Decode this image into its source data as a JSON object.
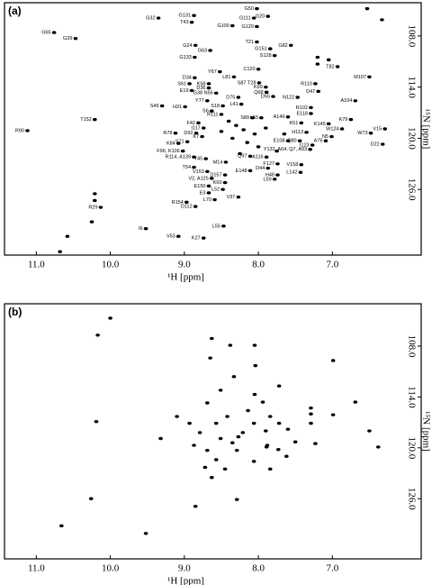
{
  "chart_data": [
    {
      "type": "scatter",
      "panel_label": "(a)",
      "x_label": "¹H [ppm]",
      "y_label": "¹⁵N [ppm]",
      "color": "#000000",
      "xlim": [
        11.43,
        5.8
      ],
      "ylim": [
        104.1,
        133.7
      ],
      "xticks": [
        {
          "value": 11,
          "label": "11.0"
        },
        {
          "value": 10,
          "label": "10.0"
        },
        {
          "value": 9,
          "label": "9.0"
        },
        {
          "value": 8,
          "label": "8.0"
        },
        {
          "value": 7,
          "label": "7.0"
        }
      ],
      "yticks": [
        {
          "value": 108,
          "label": "108.0"
        },
        {
          "value": 114,
          "label": "114.0"
        },
        {
          "value": 120,
          "label": "120.0"
        },
        {
          "value": 126,
          "label": "126.0"
        }
      ],
      "labels": [
        "G32",
        "G131",
        "T43",
        "G50",
        "G111",
        "G20",
        "G129",
        "G100",
        "G65",
        "G39",
        "G24",
        "G63",
        "G133",
        "T21",
        "G151",
        "G82",
        "S128",
        "T82",
        "M107",
        "Y67",
        "L81",
        "C120",
        "S87 T28",
        "K99",
        "R110",
        "D47",
        "D34",
        "K58",
        "S61",
        "D36",
        "E19",
        "G38 N56",
        "Q68",
        "D55",
        "A104",
        "D75",
        "N122",
        "Y77",
        "S18",
        "L41",
        "R102",
        "H31",
        "S46",
        "R90",
        "T152",
        "S6",
        "R111",
        "E118",
        "K79",
        "V15",
        "W73",
        "W124",
        "K145",
        "N5",
        "A76",
        "D22",
        "I123",
        "F42",
        "D92",
        "K7",
        "R78",
        "I117",
        "K84",
        "S71",
        "F96, K106",
        "R114, A139",
        "T54",
        "Y45",
        "V153",
        "V2, A125",
        "E150",
        "L70",
        "L52",
        "D157",
        "K60",
        "E3",
        "V37",
        "R154",
        "D112",
        "L55",
        "I6",
        "V53",
        "K27",
        "R29",
        "M14",
        "E148",
        "Q97",
        "D44",
        "V158",
        "F127",
        "H48",
        "L142",
        "L59",
        "A116",
        "E108",
        "Q80",
        "K51",
        "H113",
        "S89",
        "L83",
        "A149",
        "Y132, A64, Q7, A93",
        null,
        null,
        null,
        null,
        null,
        null,
        null,
        null,
        null,
        null,
        null,
        null,
        null,
        null,
        null,
        null,
        null,
        null,
        null,
        null,
        null,
        null
      ],
      "x": [
        9.35,
        8.87,
        8.9,
        8.02,
        8.06,
        7.87,
        8.02,
        8.35,
        10.76,
        10.47,
        8.85,
        8.65,
        8.86,
        8.02,
        7.84,
        7.56,
        7.78,
        6.93,
        6.5,
        8.52,
        8.33,
        8.0,
        7.99,
        7.9,
        7.23,
        7.19,
        8.86,
        8.67,
        8.93,
        8.67,
        8.9,
        8.57,
        7.89,
        7.8,
        6.69,
        8.27,
        7.47,
        8.69,
        8.48,
        8.23,
        7.29,
        8.99,
        9.3,
        11.12,
        10.21,
        8.63,
        8.5,
        7.29,
        6.75,
        6.29,
        6.48,
        6.87,
        7.05,
        7.01,
        7.09,
        6.32,
        7.27,
        8.81,
        8.84,
        8.76,
        9.12,
        8.74,
        9.08,
        8.96,
        9.02,
        8.87,
        8.87,
        8.71,
        8.69,
        8.63,
        8.67,
        8.59,
        8.48,
        8.45,
        8.45,
        8.67,
        8.27,
        8.97,
        8.85,
        8.47,
        9.52,
        9.08,
        8.74,
        10.13,
        8.44,
        8.11,
        8.11,
        7.87,
        7.42,
        7.74,
        7.74,
        7.43,
        7.78,
        7.89,
        7.6,
        7.44,
        7.42,
        7.35,
        8.08,
        7.96,
        7.6,
        7.3,
        6.53,
        6.33,
        10.68,
        10.58,
        10.25,
        10.21,
        10.21,
        7.2,
        7.2,
        7.05,
        8.3,
        8.2,
        8.05,
        8.15,
        8.35,
        8.0,
        7.75,
        7.65,
        8.5,
        8.25,
        7.9,
        8.4
      ],
      "y": [
        105.9,
        105.6,
        106.4,
        104.8,
        105.9,
        105.7,
        106.9,
        106.8,
        107.6,
        108.3,
        109.1,
        109.7,
        110.5,
        108.7,
        109.5,
        109.1,
        110.3,
        111.6,
        112.8,
        112.2,
        112.8,
        111.9,
        113.5,
        114.0,
        113.6,
        114.5,
        112.9,
        113.6,
        113.6,
        114.1,
        114.4,
        114.7,
        114.6,
        115.1,
        115.6,
        115.2,
        115.2,
        115.6,
        116.2,
        116.0,
        116.4,
        116.3,
        116.2,
        119.1,
        117.8,
        116.8,
        117.2,
        117.1,
        117.8,
        118.9,
        119.4,
        118.9,
        118.3,
        119.8,
        120.3,
        120.7,
        120.8,
        118.2,
        119.4,
        119.8,
        119.4,
        118.8,
        120.6,
        120.4,
        121.5,
        122.2,
        123.4,
        122.4,
        123.9,
        124.7,
        125.6,
        127.2,
        126.0,
        124.3,
        125.2,
        126.4,
        126.9,
        127.5,
        128.0,
        130.3,
        130.6,
        131.5,
        131.7,
        128.1,
        122.8,
        123.8,
        122.1,
        123.5,
        123.1,
        123.0,
        124.3,
        124.0,
        124.8,
        122.2,
        120.3,
        120.3,
        118.2,
        119.3,
        117.6,
        117.6,
        117.5,
        121.3,
        104.8,
        106.1,
        133.3,
        131.5,
        129.8,
        127.3,
        126.5,
        110.5,
        111.3,
        110.8,
        118.5,
        119.0,
        119.5,
        120.5,
        120.0,
        121.0,
        121.5,
        119.5,
        119.2,
        121.8,
        118.8,
        118.0
      ]
    },
    {
      "type": "scatter",
      "panel_label": "(b)",
      "x_label": "¹H [ppm]",
      "y_label": "¹⁵N [ppm]",
      "color": "#000000",
      "xlim": [
        11.43,
        5.8
      ],
      "ylim": [
        103.0,
        133.1
      ],
      "xticks": [
        {
          "value": 11,
          "label": "11.0"
        },
        {
          "value": 10,
          "label": "10.0"
        },
        {
          "value": 9,
          "label": "9.0"
        },
        {
          "value": 8,
          "label": "8.0"
        },
        {
          "value": 7,
          "label": "7.0"
        }
      ],
      "yticks": [
        {
          "value": 108,
          "label": "108.0"
        },
        {
          "value": 114,
          "label": "114.0"
        },
        {
          "value": 120,
          "label": "120.0"
        },
        {
          "value": 126,
          "label": "126.0"
        }
      ],
      "x": [
        10.0,
        10.17,
        8.63,
        8.38,
        8.05,
        8.65,
        8.04,
        8.33,
        7.72,
        8.51,
        8.05,
        8.69,
        7.94,
        7.29,
        7.29,
        6.69,
        10.19,
        9.32,
        8.87,
        8.29,
        8.51,
        8.79,
        8.57,
        7.9,
        7.89,
        7.6,
        7.5,
        8.06,
        7.88,
        7.23,
        6.5,
        6.38,
        8.63,
        8.29,
        8.85,
        10.66,
        9.52,
        7.73,
        8.69,
        8.35,
        8.21,
        8.42,
        8.14,
        7.84,
        7.72,
        8.57,
        8.45,
        8.72,
        8.27,
        7.29,
        6.99,
        8.93,
        9.1,
        8.06,
        7.62,
        7.84,
        6.99,
        10.26
      ],
      "y": [
        104.7,
        106.7,
        107.1,
        107.9,
        107.9,
        109.4,
        110.3,
        111.6,
        112.7,
        113.2,
        113.7,
        114.7,
        114.6,
        115.3,
        116.0,
        114.6,
        116.9,
        118.9,
        119.7,
        120.3,
        118.9,
        118.2,
        117.1,
        118.0,
        119.9,
        117.8,
        119.3,
        121.6,
        119.7,
        119.5,
        118.0,
        119.9,
        123.5,
        126.1,
        126.9,
        129.2,
        130.1,
        120.2,
        120.3,
        119.4,
        118.2,
        116.3,
        115.6,
        116.3,
        117.1,
        121.4,
        122.5,
        122.3,
        118.7,
        117.1,
        116.1,
        117.1,
        116.3,
        117.1,
        121.0,
        122.5,
        109.7,
        126.0
      ]
    }
  ]
}
